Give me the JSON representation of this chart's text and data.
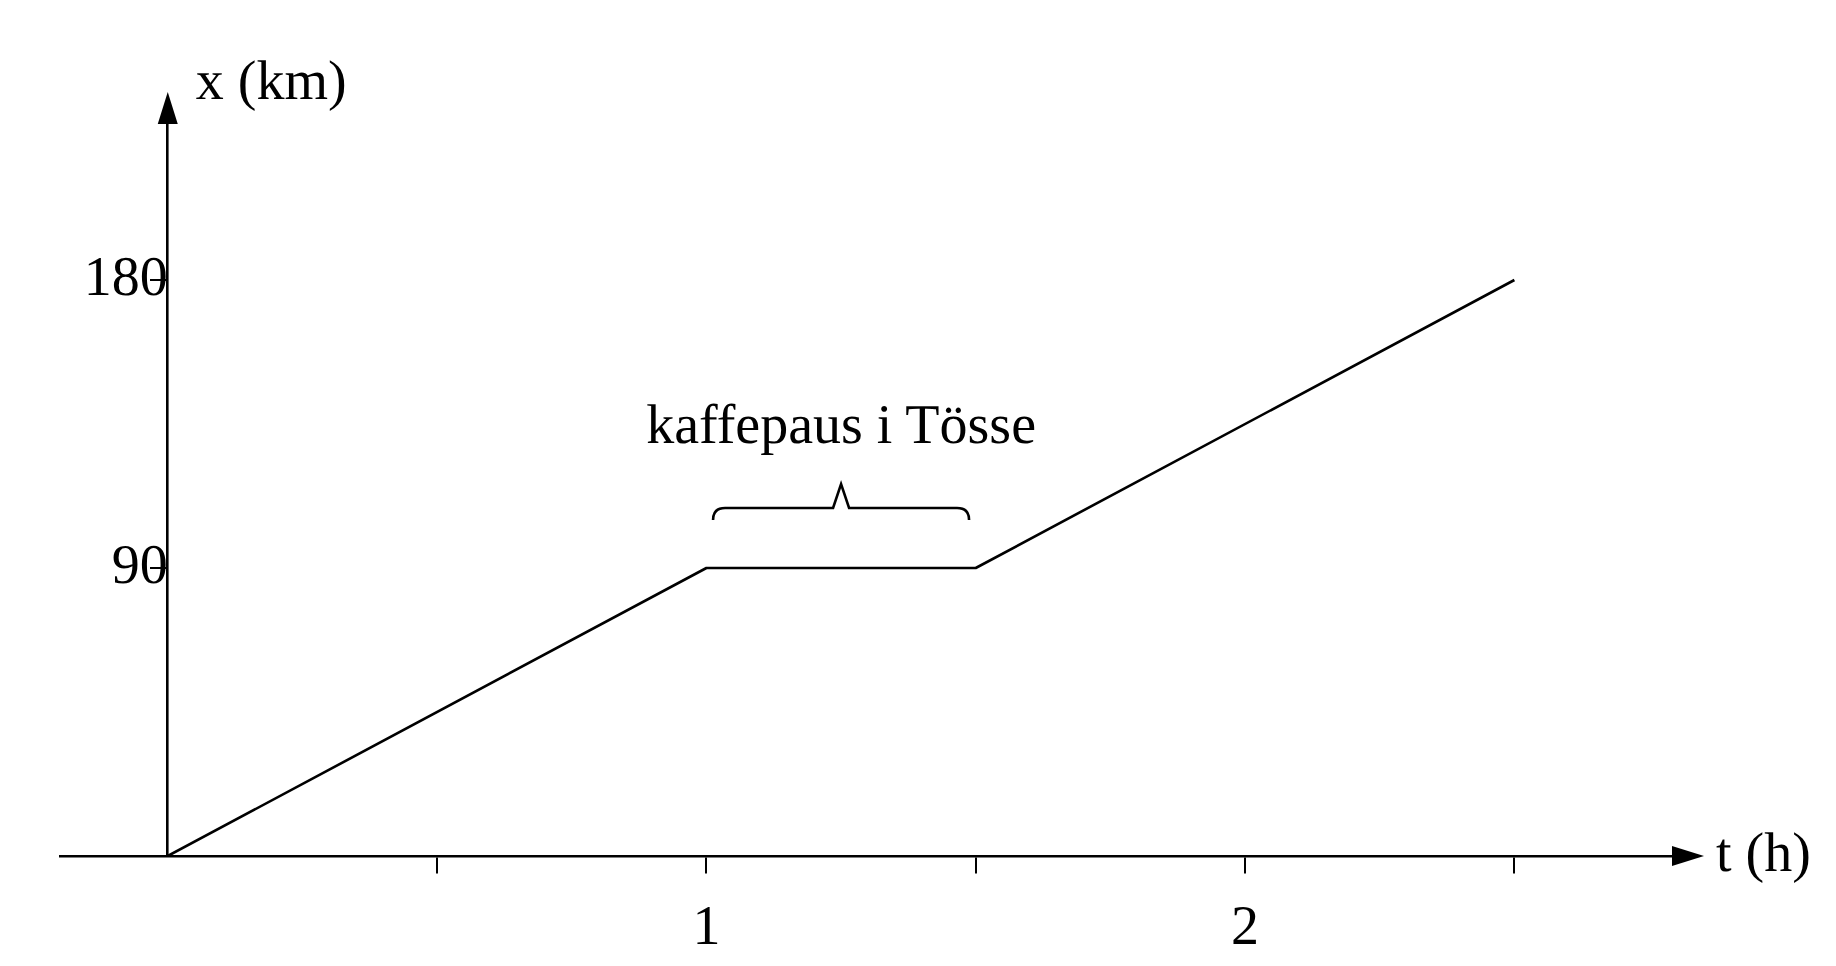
{
  "chart_data": {
    "type": "line",
    "xlabel": "t (h)",
    "ylabel": "x (km)",
    "x": [
      0,
      1,
      1.5,
      2.5
    ],
    "series": [
      {
        "color": "#000000",
        "values": [
          0,
          90,
          90,
          180
        ]
      }
    ],
    "xlim": [
      -0.2,
      2.8
    ],
    "ylim": [
      0,
      230
    ],
    "xticks": [
      {
        "value": 0.5,
        "label": null
      },
      1,
      {
        "value": 1.5,
        "label": null
      },
      2,
      {
        "value": 2.5,
        "label": null
      }
    ],
    "yticks": [
      90,
      180
    ],
    "annotations": [
      {
        "text": "kaffepaus i Tösse",
        "x": 1.25,
        "y": 90
      }
    ],
    "grid": false,
    "legend": false,
    "marker": "none",
    "line_style": "solid"
  }
}
